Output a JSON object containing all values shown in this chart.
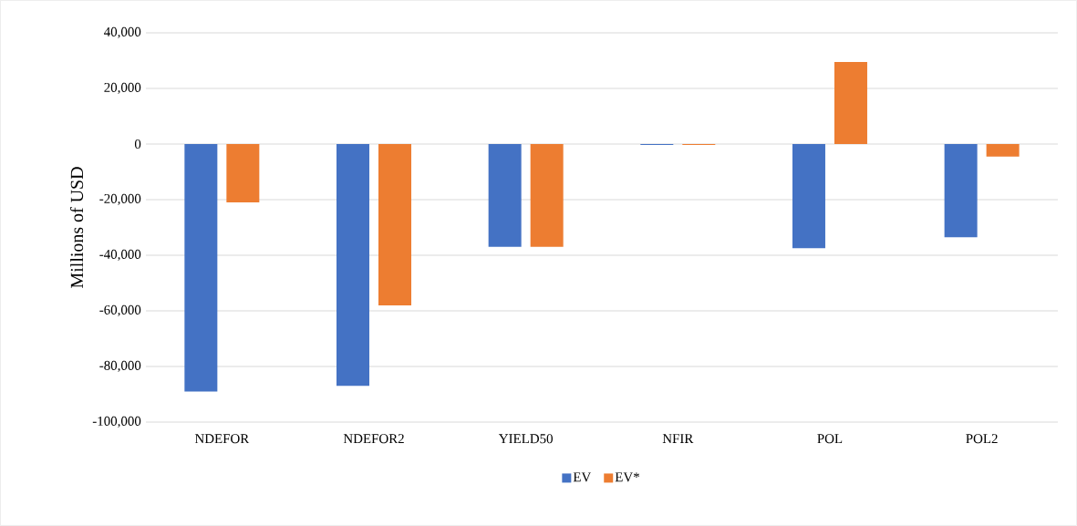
{
  "chart_data": {
    "type": "bar",
    "ylabel": "Millions of USD",
    "categories": [
      "NDEFOR",
      "NDEFOR2",
      "YIELD50",
      "NFIR",
      "POL",
      "POL2"
    ],
    "series": [
      {
        "name": "EV",
        "color": "#4472c4",
        "values": [
          -89000,
          -87000,
          -37000,
          -300,
          -37500,
          -33500
        ]
      },
      {
        "name": "EV*",
        "color": "#ed7d31",
        "values": [
          -21000,
          -58000,
          -37000,
          -300,
          29500,
          -4500
        ]
      }
    ],
    "ylim": [
      -100000,
      40000
    ],
    "yticks": [
      {
        "value": -100000,
        "label": "-100,000"
      },
      {
        "value": -80000,
        "label": "-80,000"
      },
      {
        "value": -60000,
        "label": "-60,000"
      },
      {
        "value": -40000,
        "label": "-40,000"
      },
      {
        "value": -20000,
        "label": "-20,000"
      },
      0,
      {
        "value": 20000,
        "label": "20,000"
      },
      {
        "value": 40000,
        "label": "40,000"
      }
    ],
    "grid": "y",
    "legend": "bottom"
  }
}
